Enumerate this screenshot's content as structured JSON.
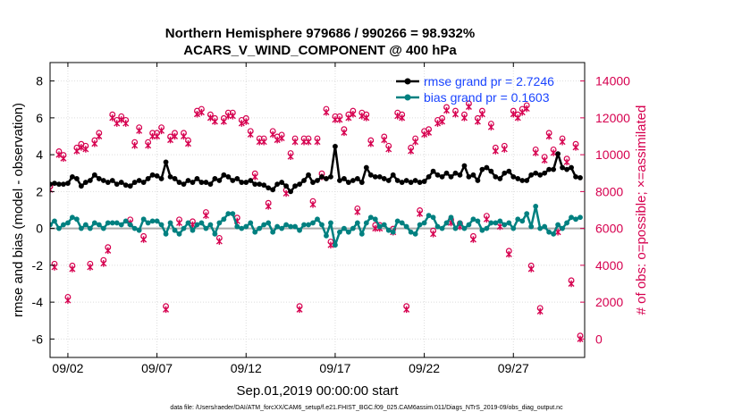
{
  "chart_data": {
    "type": "line",
    "title": "Northern Hemisphere 979686 / 990266 = 98.932%",
    "subtitle": "ACARS_V_WIND_COMPONENT @ 400 hPa",
    "xlabel": "Sep.01,2019 00:00:00 start",
    "ylabel_left": "rmse and bias (model - observation)",
    "ylabel_right": "# of obs: o=possible; ×=assimilated",
    "xlim": [
      0,
      120
    ],
    "ylim_left": [
      -7,
      9
    ],
    "ylim_right": [
      -1000,
      15000
    ],
    "x_ticks": [
      {
        "value": 4,
        "label": "09/02"
      },
      {
        "value": 24,
        "label": "09/07"
      },
      {
        "value": 44,
        "label": "09/12"
      },
      {
        "value": 64,
        "label": "09/17"
      },
      {
        "value": 84,
        "label": "09/22"
      },
      {
        "value": 104,
        "label": "09/27"
      }
    ],
    "y_ticks_left": [
      -6,
      -4,
      -2,
      0,
      2,
      4,
      6,
      8
    ],
    "y_ticks_right": [
      0,
      2000,
      4000,
      6000,
      8000,
      10000,
      12000,
      14000
    ],
    "legend": [
      {
        "label": "rmse grand pr = 2.7246",
        "color": "#000000"
      },
      {
        "label": "bias grand pr = 0.1603",
        "color": "#008080"
      }
    ],
    "colors": {
      "rmse": "#000000",
      "bias": "#008080",
      "obs": "#d6004f",
      "zero_line": "#aaaaaa"
    },
    "x": [
      0,
      1,
      2,
      3,
      4,
      5,
      6,
      7,
      8,
      9,
      10,
      11,
      12,
      13,
      14,
      15,
      16,
      17,
      18,
      19,
      20,
      21,
      22,
      23,
      24,
      25,
      26,
      27,
      28,
      29,
      30,
      31,
      32,
      33,
      34,
      35,
      36,
      37,
      38,
      39,
      40,
      41,
      42,
      43,
      44,
      45,
      46,
      47,
      48,
      49,
      50,
      51,
      52,
      53,
      54,
      55,
      56,
      57,
      58,
      59,
      60,
      61,
      62,
      63,
      64,
      65,
      66,
      67,
      68,
      69,
      70,
      71,
      72,
      73,
      74,
      75,
      76,
      77,
      78,
      79,
      80,
      81,
      82,
      83,
      84,
      85,
      86,
      87,
      88,
      89,
      90,
      91,
      92,
      93,
      94,
      95,
      96,
      97,
      98,
      99,
      100,
      101,
      102,
      103,
      104,
      105,
      106,
      107,
      108,
      109,
      110,
      111,
      112,
      113,
      114,
      115,
      116,
      117,
      118,
      119
    ],
    "series": [
      {
        "name": "rmse",
        "values": [
          2.4,
          2.45,
          2.4,
          2.4,
          2.45,
          2.8,
          2.7,
          2.3,
          2.5,
          2.6,
          2.9,
          2.7,
          2.6,
          2.5,
          2.6,
          2.4,
          2.5,
          2.35,
          2.3,
          2.5,
          2.6,
          2.5,
          2.7,
          2.9,
          2.85,
          2.7,
          3.6,
          2.8,
          2.7,
          2.5,
          2.4,
          2.6,
          2.5,
          2.7,
          2.5,
          2.5,
          2.4,
          2.7,
          2.6,
          2.9,
          2.8,
          2.6,
          2.7,
          2.5,
          2.5,
          2.6,
          2.4,
          2.4,
          2.35,
          2.2,
          2.1,
          2.4,
          2.5,
          2.3,
          2.0,
          2.3,
          2.4,
          2.6,
          2.9,
          2.5,
          2.6,
          2.8,
          2.7,
          2.8,
          4.45,
          2.6,
          2.7,
          2.5,
          2.6,
          2.7,
          2.5,
          3.3,
          2.9,
          2.8,
          2.8,
          2.7,
          2.6,
          2.9,
          2.6,
          2.5,
          2.6,
          2.5,
          2.6,
          2.5,
          2.55,
          2.8,
          3.1,
          2.9,
          2.8,
          3.0,
          2.8,
          3.0,
          2.9,
          3.4,
          2.8,
          2.9,
          2.6,
          3.2,
          3.3,
          3.1,
          2.8,
          2.7,
          3.0,
          3.1,
          2.8,
          2.7,
          2.6,
          2.6,
          2.9,
          3.0,
          2.9,
          3.0,
          3.2,
          3.2,
          4.05,
          3.3,
          3.2,
          3.3,
          2.8,
          2.75
        ]
      },
      {
        "name": "bias",
        "values": [
          0.2,
          0.4,
          0.0,
          0.2,
          0.3,
          0.6,
          0.5,
          0.0,
          0.2,
          0.0,
          0.3,
          0.2,
          0.0,
          0.3,
          0.3,
          0.3,
          0.2,
          0.4,
          0.2,
          0.0,
          -0.1,
          0.5,
          0.3,
          0.4,
          0.4,
          0.2,
          -0.3,
          0.3,
          -0.1,
          -0.3,
          0.0,
          0.3,
          -0.1,
          0.2,
          0.3,
          0.0,
          0.2,
          -0.3,
          0.3,
          0.5,
          0.8,
          0.8,
          0.1,
          0.0,
          0.1,
          0.3,
          -0.2,
          0.0,
          0.2,
          0.3,
          -0.2,
          0.1,
          0.0,
          0.2,
          0.1,
          0.1,
          -0.1,
          0.2,
          0.2,
          0.3,
          0.5,
          0.2,
          -0.4,
          0.3,
          -0.9,
          -0.2,
          0.0,
          -0.2,
          0.0,
          0.3,
          -0.3,
          0.3,
          0.6,
          0.5,
          0.1,
          0.2,
          -0.1,
          -0.2,
          0.4,
          0.3,
          0.1,
          -0.2,
          -0.3,
          0.2,
          0.3,
          0.7,
          0.6,
          0.1,
          0.0,
          0.3,
          0.6,
          0.0,
          0.3,
          0.0,
          0.2,
          0.5,
          0.4,
          -0.1,
          0.0,
          0.3,
          0.3,
          0.4,
          0.2,
          0.3,
          0.0,
          0.5,
          0.4,
          0.8,
          0.1,
          1.2,
          0.0,
          0.1,
          -0.2,
          -0.3,
          0.2,
          0.0,
          0.3,
          0.6,
          0.5,
          0.6
        ]
      },
      {
        "name": "obs",
        "values": [
          8100,
          3900,
          10000,
          9800,
          2100,
          3800,
          10200,
          10400,
          10300,
          3900,
          10600,
          11000,
          4100,
          4800,
          12000,
          11700,
          11900,
          11700,
          6300,
          10500,
          11300,
          5400,
          10500,
          11000,
          11000,
          11300,
          1600,
          10800,
          11000,
          6300,
          11000,
          10600,
          6200,
          12200,
          12300,
          6700,
          12000,
          11800,
          5300,
          11800,
          12100,
          12100,
          6400,
          11700,
          11800,
          11100,
          8800,
          10700,
          10700,
          7200,
          11100,
          10800,
          10900,
          7900,
          9900,
          10700,
          1600,
          10700,
          10700,
          7300,
          10700,
          8800,
          12300,
          5100,
          11900,
          11900,
          11200,
          12000,
          12200,
          6900,
          12100,
          12000,
          10600,
          6000,
          6000,
          10800,
          10300,
          5800,
          12100,
          12000,
          1600,
          10200,
          10700,
          6800,
          11100,
          11200,
          5700,
          11700,
          11800,
          12400,
          6300,
          12200,
          6100,
          12000,
          12600,
          5400,
          11800,
          12200,
          6500,
          11500,
          10200,
          6100,
          10300,
          4600,
          12200,
          12000,
          12300,
          12500,
          3800,
          10100,
          1500,
          9700,
          11000,
          10100,
          5800,
          10700,
          9600,
          3000,
          10400,
          0
        ]
      }
    ]
  }
}
